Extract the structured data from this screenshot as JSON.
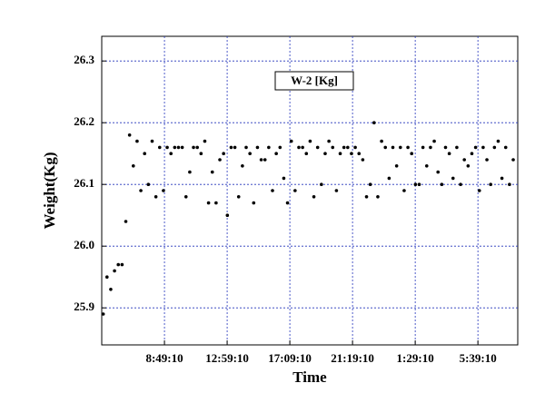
{
  "chart_data": {
    "type": "scatter",
    "annotation": "W-2 [Kg]",
    "x_label": "Time",
    "y_label": "Weight(Kg)",
    "color": "#000000",
    "grid": true,
    "xlim": [
      4.65,
      32.3
    ],
    "xticks": [
      {
        "value": 8.8194,
        "label": "8:49:10"
      },
      {
        "value": 12.9861,
        "label": "12:59:10"
      },
      {
        "value": 17.1528,
        "label": "17:09:10"
      },
      {
        "value": 21.3194,
        "label": "21:19:10"
      },
      {
        "value": 25.4861,
        "label": "1:29:10"
      },
      {
        "value": 29.6528,
        "label": "5:39:10"
      }
    ],
    "ylim": [
      25.84,
      26.34
    ],
    "yticks": [
      25.9,
      {
        "value": 26,
        "label": "26.0"
      },
      26.1,
      26.2,
      26.3
    ],
    "x": [
      4.75,
      5.0,
      5.25,
      5.5,
      5.75,
      6.0,
      6.25,
      6.5,
      6.75,
      7.0,
      7.25,
      7.5,
      7.75,
      8.0,
      8.25,
      8.5,
      8.75,
      9.0,
      9.25,
      9.5,
      9.75,
      10.0,
      10.25,
      10.5,
      10.75,
      11.0,
      11.25,
      11.5,
      11.75,
      12.0,
      12.25,
      12.5,
      12.75,
      13.0,
      13.25,
      13.5,
      13.75,
      14.0,
      14.25,
      14.5,
      14.75,
      15.0,
      15.25,
      15.5,
      15.75,
      16.0,
      16.25,
      16.5,
      16.75,
      17.0,
      17.25,
      17.5,
      17.75,
      18.0,
      18.25,
      18.5,
      18.75,
      19.0,
      19.25,
      19.5,
      19.75,
      20.0,
      20.25,
      20.5,
      20.75,
      21.0,
      21.25,
      21.5,
      21.75,
      22.0,
      22.25,
      22.5,
      22.75,
      23.0,
      23.25,
      23.5,
      23.75,
      24.0,
      24.25,
      24.5,
      24.75,
      25.0,
      25.25,
      25.5,
      25.75,
      26.0,
      26.25,
      26.5,
      26.75,
      27.0,
      27.25,
      27.5,
      27.75,
      28.0,
      28.25,
      28.5,
      28.75,
      29.0,
      29.25,
      29.5,
      29.75,
      30.0,
      30.25,
      30.5,
      30.75,
      31.0,
      31.25,
      31.5,
      31.75,
      32.0
    ],
    "values": [
      25.89,
      25.95,
      25.93,
      25.96,
      25.97,
      25.97,
      26.04,
      26.18,
      26.13,
      26.17,
      26.09,
      26.15,
      26.1,
      26.17,
      26.08,
      26.16,
      26.09,
      26.16,
      26.15,
      26.16,
      26.16,
      26.16,
      26.08,
      26.12,
      26.16,
      26.16,
      26.15,
      26.17,
      26.07,
      26.12,
      26.07,
      26.14,
      26.15,
      26.05,
      26.16,
      26.16,
      26.08,
      26.13,
      26.16,
      26.15,
      26.07,
      26.16,
      26.14,
      26.14,
      26.16,
      26.09,
      26.15,
      26.16,
      26.11,
      26.07,
      26.17,
      26.09,
      26.16,
      26.16,
      26.15,
      26.17,
      26.08,
      26.16,
      26.1,
      26.15,
      26.17,
      26.16,
      26.09,
      26.15,
      26.16,
      26.16,
      26.15,
      26.16,
      26.15,
      26.14,
      26.08,
      26.1,
      26.2,
      26.08,
      26.17,
      26.16,
      26.11,
      26.16,
      26.13,
      26.16,
      26.09,
      26.16,
      26.15,
      26.1,
      26.1,
      26.16,
      26.13,
      26.16,
      26.17,
      26.12,
      26.1,
      26.16,
      26.15,
      26.11,
      26.16,
      26.1,
      26.14,
      26.13,
      26.15,
      26.16,
      26.09,
      26.16,
      26.14,
      26.1,
      26.16,
      26.17,
      26.11,
      26.16,
      26.1,
      26.14
    ]
  }
}
